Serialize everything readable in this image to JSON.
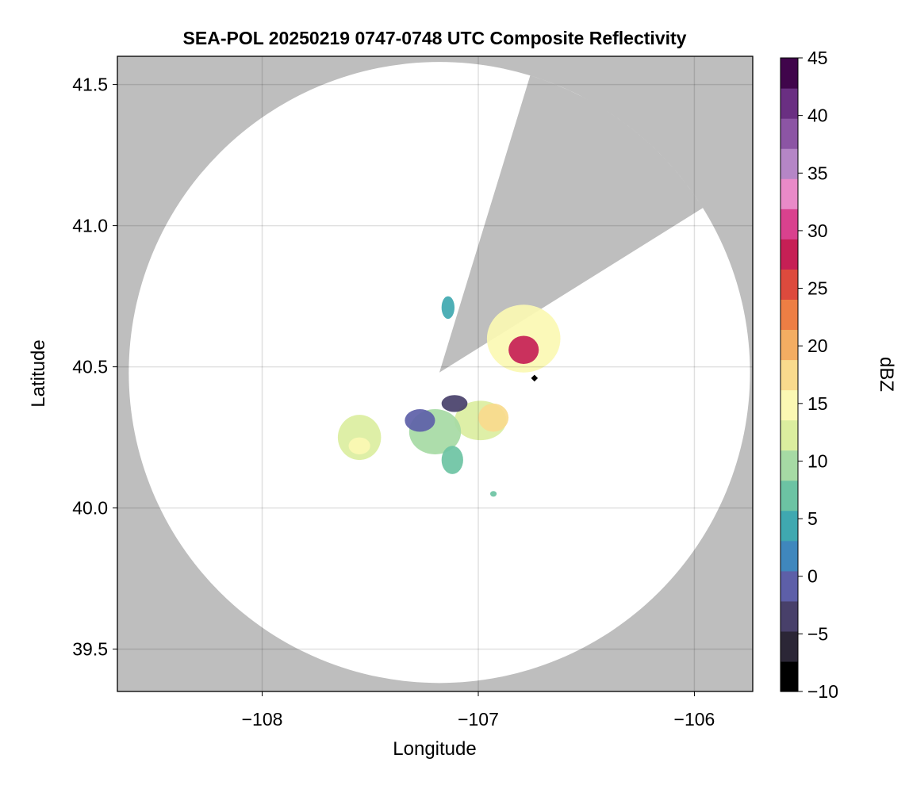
{
  "chart_data": {
    "type": "heatmap",
    "title": "SEA-POL 20250219 0747-0748 UTC Composite Reflectivity",
    "xlabel": "Longitude",
    "ylabel": "Latitude",
    "xlim": [
      -108.67,
      -105.73
    ],
    "ylim": [
      39.35,
      41.6
    ],
    "xticks": [
      -108,
      -107,
      -106
    ],
    "xtick_labels": [
      "−108",
      "−107",
      "−106"
    ],
    "yticks": [
      39.5,
      40.0,
      40.5,
      41.0,
      41.5
    ],
    "ytick_labels": [
      "39.5",
      "40.0",
      "40.5",
      "41.0",
      "41.5"
    ],
    "grid": true,
    "no_data_color": "#bebebe",
    "coverage_color": "#ffffff",
    "radar": {
      "center": [
        -107.18,
        40.48
      ],
      "radius_deg_lat": 1.1,
      "blocked_sector_bearings_deg": [
        17,
        58
      ]
    },
    "site_marker": {
      "lon": -106.74,
      "lat": 40.46,
      "color": "#000000"
    },
    "colorbar": {
      "label": "dBZ",
      "vmin": -10,
      "vmax": 45,
      "ticks": [
        -10,
        -5,
        0,
        5,
        10,
        15,
        20,
        25,
        30,
        35,
        40,
        45
      ],
      "tick_labels": [
        "−10",
        "−5",
        "0",
        "5",
        "10",
        "15",
        "20",
        "25",
        "30",
        "35",
        "40",
        "45"
      ],
      "colors": [
        "#000000",
        "#2b2636",
        "#48406a",
        "#5d5fa8",
        "#3f87bd",
        "#3fa8b0",
        "#6cc3a3",
        "#a6daa4",
        "#dbee9f",
        "#fbf8b3",
        "#f9da8d",
        "#f4ad62",
        "#ed7e44",
        "#dd4a3d",
        "#c61f55",
        "#d9418e",
        "#e98ac8",
        "#b586c6",
        "#8c55a4",
        "#6a2f82",
        "#40054b"
      ]
    },
    "echoes": [
      {
        "name": "northeast-cell",
        "center": [
          -106.79,
          40.6
        ],
        "radius": [
          0.17,
          0.12
        ],
        "value": 16
      },
      {
        "name": "northeast-core",
        "center": [
          -106.79,
          40.56
        ],
        "radius": [
          0.07,
          0.05
        ],
        "value": 27
      },
      {
        "name": "central-cell",
        "center": [
          -106.99,
          40.31
        ],
        "radius": [
          0.12,
          0.07
        ],
        "value": 12
      },
      {
        "name": "central-core",
        "center": [
          -106.93,
          40.32
        ],
        "radius": [
          0.07,
          0.05
        ],
        "value": 18
      },
      {
        "name": "central-dark-band",
        "center": [
          -107.11,
          40.37
        ],
        "radius": [
          0.06,
          0.03
        ],
        "value": -3
      },
      {
        "name": "middle-cell",
        "center": [
          -107.2,
          40.27
        ],
        "radius": [
          0.12,
          0.08
        ],
        "value": 9
      },
      {
        "name": "middle-dark-band",
        "center": [
          -107.27,
          40.31
        ],
        "radius": [
          0.07,
          0.04
        ],
        "value": 0
      },
      {
        "name": "middle-south-tail",
        "center": [
          -107.12,
          40.17
        ],
        "radius": [
          0.05,
          0.05
        ],
        "value": 7
      },
      {
        "name": "west-cell",
        "center": [
          -107.55,
          40.25
        ],
        "radius": [
          0.1,
          0.08
        ],
        "value": 11
      },
      {
        "name": "west-core",
        "center": [
          -107.55,
          40.22
        ],
        "radius": [
          0.05,
          0.03
        ],
        "value": 16
      },
      {
        "name": "north-fragment",
        "center": [
          -107.14,
          40.71
        ],
        "radius": [
          0.03,
          0.04
        ],
        "value": 5
      },
      {
        "name": "south-speck",
        "center": [
          -106.93,
          40.05
        ],
        "radius": [
          0.015,
          0.01
        ],
        "value": 8
      }
    ]
  }
}
